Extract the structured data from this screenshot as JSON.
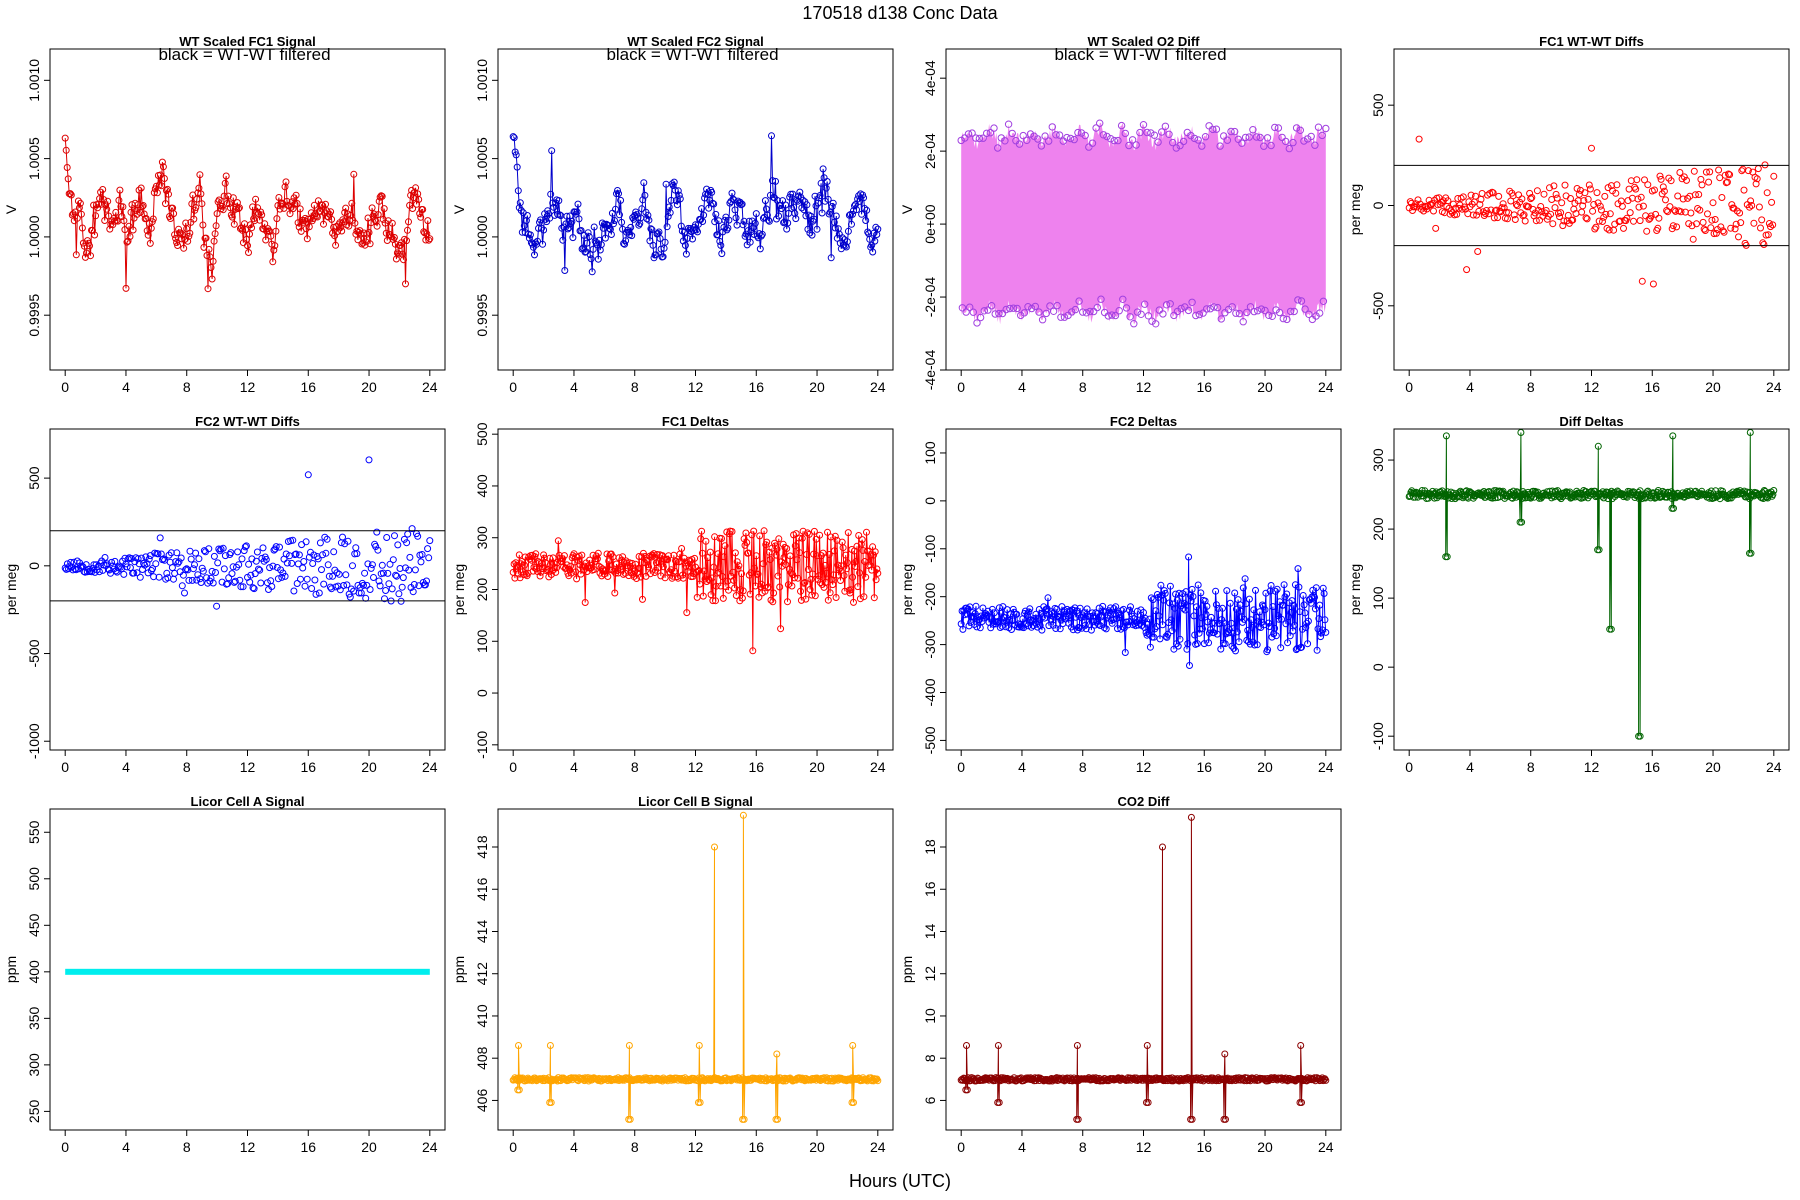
{
  "page_title": "170518   d138   Conc Data",
  "x_label": "Hours (UTC)",
  "chart_data": [
    {
      "id": "fc1_signal",
      "type": "scatter",
      "title": "WT Scaled FC1 Signal",
      "annotation": "black = WT-WT filtered",
      "ylabel": "V",
      "color": "#dd0000",
      "fill": "",
      "style": "line_points",
      "shape": "signal",
      "base": 1.0001,
      "amp": 0.0002,
      "seed": 11,
      "x_ticks": [
        0,
        4,
        8,
        12,
        16,
        20,
        24
      ],
      "xlim": [
        -1,
        25
      ],
      "ylim": [
        0.99915,
        1.0012
      ],
      "y_ticks": [
        0.9995,
        1.0,
        1.0005,
        1.001
      ],
      "y_tick_labels": [
        "0.9995",
        "1.0000",
        "1.0005",
        "1.0010"
      ]
    },
    {
      "id": "fc2_signal",
      "type": "scatter",
      "title": "WT Scaled FC2 Signal",
      "annotation": "black = WT-WT filtered",
      "ylabel": "V",
      "color": "#0000cc",
      "fill": "",
      "style": "line_points",
      "shape": "signal",
      "base": 1.0001,
      "amp": 0.0002,
      "seed": 23,
      "x_ticks": [
        0,
        4,
        8,
        12,
        16,
        20,
        24
      ],
      "xlim": [
        -1,
        25
      ],
      "ylim": [
        0.99915,
        1.0012
      ],
      "y_ticks": [
        0.9995,
        1.0,
        1.0005,
        1.001
      ],
      "y_tick_labels": [
        "0.9995",
        "1.0000",
        "1.0005",
        "1.0010"
      ]
    },
    {
      "id": "o2_diff",
      "type": "scatter",
      "title": "WT Scaled O2 Diff",
      "annotation": "black = WT-WT filtered",
      "ylabel": "V",
      "color": "#a040e0",
      "fill": "#ee82ee",
      "style": "band",
      "shape": "band",
      "base": 0.00024,
      "amp": 3e-05,
      "seed": 37,
      "x_ticks": [
        0,
        4,
        8,
        12,
        16,
        20,
        24
      ],
      "xlim": [
        -1,
        25
      ],
      "ylim": [
        -0.0004,
        0.00048
      ],
      "y_ticks": [
        -0.0004,
        -0.0002,
        0,
        0.0002,
        0.0004
      ],
      "y_tick_labels": [
        "-4e-04",
        "-2e-04",
        "0e+00",
        "2e-04",
        "4e-04"
      ]
    },
    {
      "id": "fc1_wtwt",
      "type": "scatter",
      "title": "FC1 WT-WT Diffs",
      "annotation": "",
      "ylabel": "per meg",
      "color": "#ff0000",
      "fill": "",
      "style": "points",
      "shape": "diffs",
      "base": 0,
      "amp": 150,
      "seed": 41,
      "hlines": [
        200,
        -200
      ],
      "x_ticks": [
        0,
        4,
        8,
        12,
        16,
        20,
        24
      ],
      "xlim": [
        -1,
        25
      ],
      "ylim": [
        -820,
        780
      ],
      "y_ticks": [
        -500,
        0,
        500
      ],
      "y_tick_labels": [
        "-500",
        "0",
        "500"
      ]
    },
    {
      "id": "fc2_wtwt",
      "type": "scatter",
      "title": "FC2 WT-WT Diffs",
      "annotation": "",
      "ylabel": "per meg",
      "color": "#0000ff",
      "fill": "",
      "style": "points",
      "shape": "diffs",
      "base": 0,
      "amp": 160,
      "seed": 53,
      "hlines": [
        200,
        -200
      ],
      "x_ticks": [
        0,
        4,
        8,
        12,
        16,
        20,
        24
      ],
      "xlim": [
        -1,
        25
      ],
      "ylim": [
        -1050,
        780
      ],
      "y_ticks": [
        -1000,
        -500,
        0,
        500
      ],
      "y_tick_labels": [
        "-1000",
        "-500",
        "0",
        "500"
      ]
    },
    {
      "id": "fc1_deltas",
      "type": "scatter",
      "title": "FC1 Deltas",
      "annotation": "",
      "ylabel": "per meg",
      "color": "#ff0000",
      "fill": "",
      "style": "line_points",
      "shape": "deltas",
      "base": 245,
      "amp": 25,
      "seed": 61,
      "x_ticks": [
        0,
        4,
        8,
        12,
        16,
        20,
        24
      ],
      "xlim": [
        -1,
        25
      ],
      "ylim": [
        -110,
        510
      ],
      "y_ticks": [
        -100,
        0,
        100,
        200,
        300,
        400,
        500
      ],
      "y_tick_labels": [
        "-100",
        "0",
        "100",
        "200",
        "300",
        "400",
        "500"
      ]
    },
    {
      "id": "fc2_deltas",
      "type": "scatter",
      "title": "FC2 Deltas",
      "annotation": "",
      "ylabel": "per meg",
      "color": "#0000ff",
      "fill": "",
      "style": "line_points",
      "shape": "deltas",
      "base": -245,
      "amp": 25,
      "seed": 73,
      "x_ticks": [
        0,
        4,
        8,
        12,
        16,
        20,
        24
      ],
      "xlim": [
        -1,
        25
      ],
      "ylim": [
        -520,
        150
      ],
      "y_ticks": [
        -500,
        -400,
        -300,
        -200,
        -100,
        0,
        100
      ],
      "y_tick_labels": [
        "-500",
        "-400",
        "-300",
        "-200",
        "-100",
        "0",
        "100"
      ]
    },
    {
      "id": "diff_deltas",
      "type": "scatter",
      "title": "Diff Deltas",
      "annotation": "",
      "ylabel": "per meg",
      "color": "#006400",
      "fill": "",
      "style": "line_points",
      "shape": "steady_spikes",
      "base": 250,
      "amp": 6,
      "seed": 89,
      "spikes": [
        [
          2.4,
          160,
          335
        ],
        [
          7.3,
          210,
          340
        ],
        [
          12.4,
          170,
          320
        ],
        [
          13.2,
          55,
          250
        ],
        [
          15.1,
          -100,
          250
        ],
        [
          17.3,
          230,
          335
        ],
        [
          22.4,
          165,
          340
        ]
      ],
      "x_ticks": [
        0,
        4,
        8,
        12,
        16,
        20,
        24
      ],
      "xlim": [
        -1,
        25
      ],
      "ylim": [
        -120,
        345
      ],
      "y_ticks": [
        -100,
        0,
        100,
        200,
        300
      ],
      "y_tick_labels": [
        "-100",
        "0",
        "100",
        "200",
        "300"
      ]
    },
    {
      "id": "licor_a",
      "type": "scatter",
      "title": "Licor Cell A Signal",
      "annotation": "",
      "ylabel": "ppm",
      "color": "#00eeee",
      "fill": "",
      "style": "flat",
      "shape": "flat",
      "base": 400,
      "amp": 0,
      "seed": 97,
      "x_ticks": [
        0,
        4,
        8,
        12,
        16,
        20,
        24
      ],
      "xlim": [
        -1,
        25
      ],
      "ylim": [
        230,
        575
      ],
      "y_ticks": [
        250,
        300,
        350,
        400,
        450,
        500,
        550
      ],
      "y_tick_labels": [
        "250",
        "300",
        "350",
        "400",
        "450",
        "500",
        "550"
      ]
    },
    {
      "id": "licor_b",
      "type": "scatter",
      "title": "Licor Cell B Signal",
      "annotation": "",
      "ylabel": "ppm",
      "color": "#ffa500",
      "fill": "",
      "style": "line_points",
      "shape": "steady_spikes",
      "base": 407,
      "amp": 0.08,
      "seed": 101,
      "spikes": [
        [
          0.3,
          406.5,
          408.6
        ],
        [
          2.4,
          405.9,
          408.6
        ],
        [
          7.6,
          405.1,
          408.6
        ],
        [
          12.2,
          405.9,
          408.6
        ],
        [
          13.2,
          407,
          418
        ],
        [
          15.1,
          405.1,
          419.5
        ],
        [
          17.3,
          405.1,
          408.2
        ],
        [
          22.3,
          405.9,
          408.6
        ]
      ],
      "x_ticks": [
        0,
        4,
        8,
        12,
        16,
        20,
        24
      ],
      "xlim": [
        -1,
        25
      ],
      "ylim": [
        404.6,
        419.8
      ],
      "y_ticks": [
        406,
        408,
        410,
        412,
        414,
        416,
        418
      ],
      "y_tick_labels": [
        "406",
        "408",
        "410",
        "412",
        "414",
        "416",
        "418"
      ]
    },
    {
      "id": "co2_diff",
      "type": "scatter",
      "title": "CO2 Diff",
      "annotation": "",
      "ylabel": "ppm",
      "color": "#8b0000",
      "fill": "",
      "style": "line_points",
      "shape": "steady_spikes",
      "base": 7.0,
      "amp": 0.08,
      "seed": 113,
      "spikes": [
        [
          0.3,
          6.5,
          8.6
        ],
        [
          2.4,
          5.9,
          8.6
        ],
        [
          7.6,
          5.1,
          8.6
        ],
        [
          12.2,
          5.9,
          8.6
        ],
        [
          13.2,
          7,
          18
        ],
        [
          15.1,
          5.1,
          19.4
        ],
        [
          17.3,
          5.1,
          8.2
        ],
        [
          22.3,
          5.9,
          8.6
        ]
      ],
      "x_ticks": [
        0,
        4,
        8,
        12,
        16,
        20,
        24
      ],
      "xlim": [
        -1,
        25
      ],
      "ylim": [
        4.6,
        19.8
      ],
      "y_ticks": [
        6,
        8,
        10,
        12,
        14,
        16,
        18
      ],
      "y_tick_labels": [
        "6",
        "8",
        "10",
        "12",
        "14",
        "16",
        "18"
      ]
    }
  ]
}
